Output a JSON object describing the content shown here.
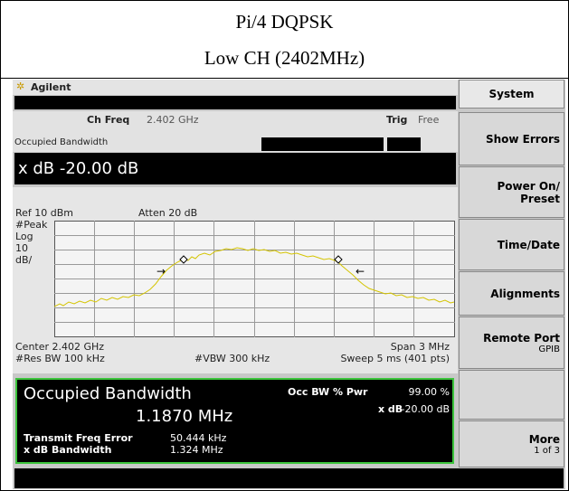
{
  "header": {
    "line1": "Pi/4 DQPSK",
    "line2": "Low CH (2402MHz)"
  },
  "brand": "Agilent",
  "status": {
    "ch_freq_label": "Ch Freq",
    "ch_freq_value": "2.402 GHz",
    "trig_label": "Trig",
    "trig_value": "Free",
    "mode": "Occupied Bandwidth"
  },
  "active_function": "x dB -20.00 dB",
  "graph": {
    "ref": "Ref 10 dBm",
    "atten": "Atten 20 dB",
    "detector": "#Peak",
    "scale": [
      "Log",
      "10",
      "dB/"
    ],
    "center": "Center 2.402 GHz",
    "span": "Span 3 MHz",
    "res_bw": "#Res BW 100 kHz",
    "vbw": "#VBW 300 kHz",
    "sweep": "Sweep 5 ms (401 pts)"
  },
  "results": {
    "title": "Occupied Bandwidth",
    "value": "1.1870 MHz",
    "occ_bw_label": "Occ BW % Pwr",
    "occ_bw_value": "99.00 %",
    "xdb_label": "x dB",
    "xdb_value": "-20.00 dB",
    "tfe_label": "Transmit Freq Error",
    "tfe_value": "50.444 kHz",
    "xdb_bw_label": "x dB Bandwidth",
    "xdb_bw_value": "1.324 MHz"
  },
  "softkeys": [
    {
      "lines": [
        "System"
      ]
    },
    {
      "lines": [
        "Show Errors"
      ]
    },
    {
      "lines": [
        "Power On/",
        "Preset"
      ]
    },
    {
      "lines": [
        "Time/Date"
      ]
    },
    {
      "lines": [
        "Alignments"
      ]
    },
    {
      "lines": [
        "Remote Port",
        "GPIB"
      ]
    },
    {
      "lines": []
    },
    {
      "lines": [
        "More",
        "1 of 3"
      ]
    }
  ]
}
